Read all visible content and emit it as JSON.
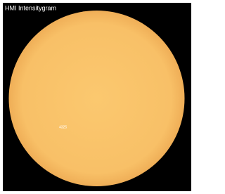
{
  "title": "HMI Intensitygram",
  "annotations": [
    {
      "label": "4325"
    }
  ]
}
